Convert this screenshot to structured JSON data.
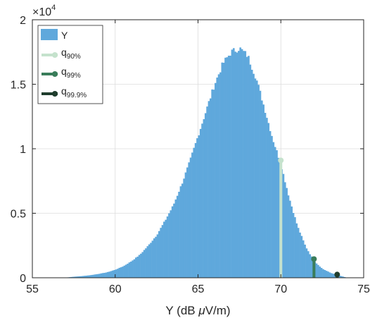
{
  "chart_data": {
    "type": "bar",
    "title": "",
    "xlabel_prefix": "Y (dB ",
    "xlabel_mu": "μ",
    "xlabel_suffix": "V/m)",
    "ylabel": "",
    "y_multiplier_base": "×10",
    "y_multiplier_exp": "4",
    "xlim": [
      55,
      75
    ],
    "ylim": [
      0,
      20000
    ],
    "x_ticks": [
      55,
      60,
      65,
      70,
      75
    ],
    "y_ticks": [
      0,
      5000,
      10000,
      15000,
      20000
    ],
    "y_tick_labels": [
      "0",
      "0.5",
      "1",
      "1.5",
      "2"
    ],
    "grid": true,
    "legend_position": "top-left",
    "histogram_range": [
      56.9,
      74.0
    ],
    "histogram_bin_width": 0.1,
    "histogram_shape": {
      "x": [
        56.9,
        57.5,
        58.0,
        58.5,
        59.0,
        59.5,
        60.0,
        60.5,
        61.0,
        61.5,
        62.0,
        62.5,
        63.0,
        63.5,
        64.0,
        64.5,
        65.0,
        65.5,
        66.0,
        66.5,
        67.0,
        67.5,
        68.0,
        68.5,
        69.0,
        69.5,
        70.0,
        70.5,
        71.0,
        71.5,
        72.0,
        72.5,
        73.0,
        73.5,
        74.0
      ],
      "y": [
        0,
        80,
        130,
        200,
        300,
        420,
        620,
        900,
        1300,
        1800,
        2500,
        3300,
        4400,
        5600,
        7200,
        9000,
        11000,
        13000,
        15000,
        16600,
        17500,
        17800,
        17200,
        15500,
        13200,
        10800,
        8800,
        6200,
        4000,
        2400,
        1300,
        700,
        380,
        180,
        0
      ]
    },
    "series": [
      {
        "name": "Y",
        "color": "#5fa8dc"
      },
      {
        "name_base": "q",
        "name_sub": "90%",
        "x": 70.0,
        "y": 9100,
        "color": "#c5e2cd"
      },
      {
        "name_base": "q",
        "name_sub": "99%",
        "x": 72.0,
        "y": 1450,
        "color": "#3a7d5a"
      },
      {
        "name_base": "q",
        "name_sub": "99.9%",
        "x": 73.4,
        "y": 250,
        "color": "#1f3d2d"
      }
    ]
  }
}
